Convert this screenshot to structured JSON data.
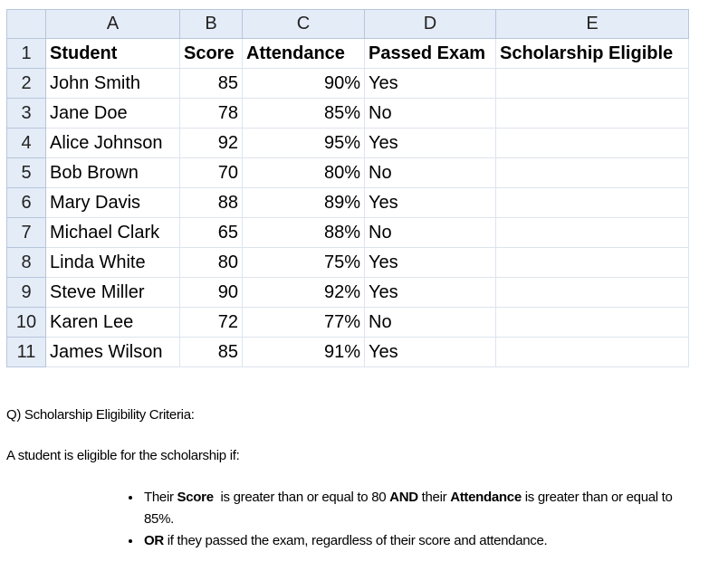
{
  "columns": [
    "A",
    "B",
    "C",
    "D",
    "E"
  ],
  "headers": [
    "Student",
    "Score",
    "Attendance",
    "Passed Exam",
    "Scholarship Eligible"
  ],
  "rows": [
    [
      "John Smith",
      "85",
      "90%",
      "Yes",
      ""
    ],
    [
      "Jane Doe",
      "78",
      "85%",
      "No",
      ""
    ],
    [
      "Alice Johnson",
      "92",
      "95%",
      "Yes",
      ""
    ],
    [
      "Bob Brown",
      "70",
      "80%",
      "No",
      ""
    ],
    [
      "Mary Davis",
      "88",
      "89%",
      "Yes",
      ""
    ],
    [
      "Michael Clark",
      "65",
      "88%",
      "No",
      ""
    ],
    [
      "Linda White",
      "80",
      "75%",
      "Yes",
      ""
    ],
    [
      "Steve Miller",
      "90",
      "92%",
      "Yes",
      ""
    ],
    [
      "Karen Lee",
      "72",
      "77%",
      "No",
      ""
    ],
    [
      "James Wilson",
      "85",
      "91%",
      "Yes",
      ""
    ]
  ],
  "question": {
    "title": "Q) Scholarship Eligibility Criteria:",
    "intro": "A student is eligible for the scholarship if:",
    "bullets": [
      [
        {
          "t": "Their "
        },
        {
          "t": "Score",
          "b": true
        },
        {
          "t": "  is greater than or equal to 80 "
        },
        {
          "t": "AND",
          "b": true
        },
        {
          "t": " their "
        },
        {
          "t": "Attendance",
          "b": true
        },
        {
          "t": " is greater than or equal to 85%."
        }
      ],
      [
        {
          "t": "OR",
          "b": true
        },
        {
          "t": " if they passed the exam, regardless of their score and attendance."
        }
      ]
    ]
  }
}
